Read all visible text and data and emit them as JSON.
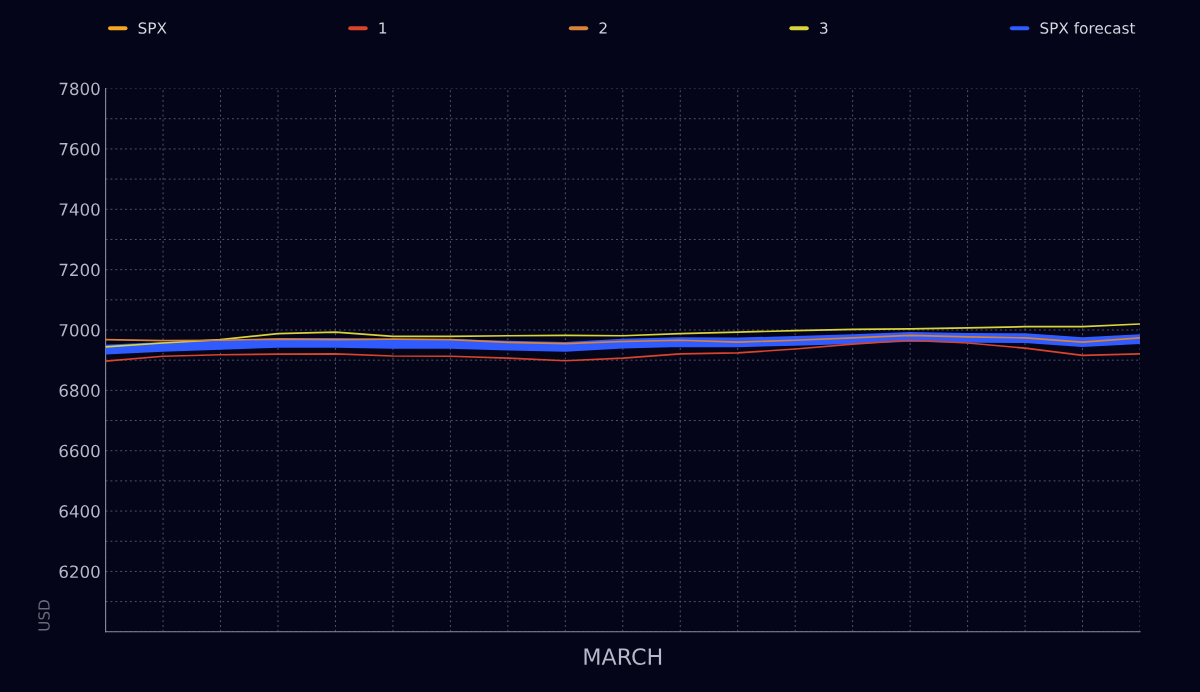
{
  "chart_data": {
    "type": "line",
    "xlabel": "MARCH",
    "ylabel": "USD",
    "categories": [
      null,
      null,
      null,
      null,
      null,
      null,
      null,
      null,
      null,
      null,
      null,
      null,
      null,
      null,
      null,
      null,
      null,
      null,
      null
    ],
    "series": [
      {
        "name": "SPX",
        "color": "#f5a623",
        "values": [
          null,
          null,
          null,
          null,
          null,
          null,
          null,
          null,
          null,
          null,
          null,
          null,
          null,
          null,
          null,
          null,
          null,
          null,
          null
        ]
      },
      {
        "name": "1",
        "color": "#d9442a",
        "values": [
          6897,
          6913,
          6918,
          6920,
          6921,
          6914,
          6913,
          6907,
          6898,
          6907,
          6921,
          6924,
          6937,
          6953,
          6966,
          6957,
          6940,
          6916,
          6921
        ]
      },
      {
        "name": "2",
        "color": "#d9823a",
        "values": [
          6968,
          6965,
          6966,
          6970,
          6968,
          6970,
          6968,
          6959,
          6955,
          6962,
          6966,
          6960,
          6966,
          6974,
          6982,
          6977,
          6974,
          6960,
          6974
        ]
      },
      {
        "name": "3",
        "color": "#d8d43a",
        "values": [
          6944,
          6957,
          6968,
          6988,
          6993,
          6979,
          6979,
          6981,
          6982,
          6981,
          6988,
          6993,
          6998,
          7002,
          7004,
          7007,
          7011,
          7011,
          7020
        ]
      },
      {
        "name": "SPX forecast",
        "color": "#2f5bff",
        "values": [
          6935,
          6944,
          6951,
          6957,
          6957,
          6954,
          6954,
          6948,
          6944,
          6955,
          6960,
          6959,
          6964,
          6970,
          6977,
          6974,
          6973,
          6960,
          6970
        ]
      }
    ],
    "ylim": [
      6000,
      7800
    ],
    "yticks": [
      {
        "value": 6000,
        "label": null
      },
      {
        "value": 6100,
        "label": null
      },
      6200,
      {
        "value": 6300,
        "label": null
      },
      6400,
      {
        "value": 6500,
        "label": null
      },
      6600,
      {
        "value": 6700,
        "label": null
      },
      6800,
      {
        "value": 6900,
        "label": null
      },
      7000,
      {
        "value": 7100,
        "label": null
      },
      7200,
      {
        "value": 7300,
        "label": null
      },
      7400,
      {
        "value": 7500,
        "label": null
      },
      7600,
      {
        "value": 7700,
        "label": null
      },
      7800
    ],
    "grid": true,
    "legend": "top",
    "line_style": "solid",
    "marker": "none"
  }
}
